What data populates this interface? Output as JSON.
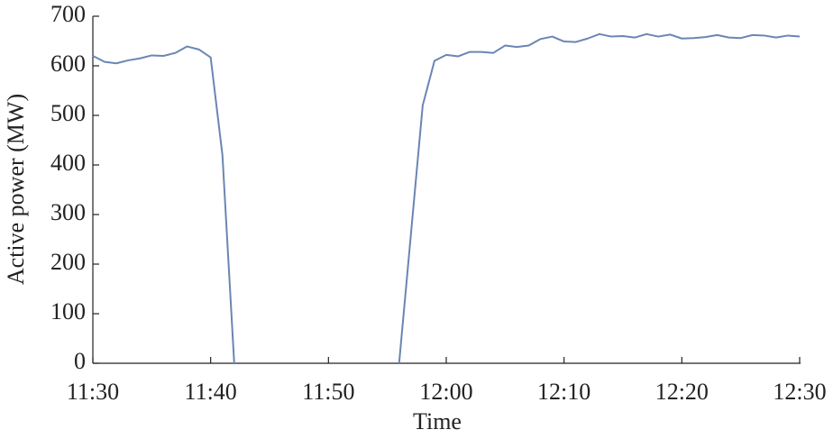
{
  "chart_data": {
    "type": "line",
    "xlabel": "Time",
    "ylabel": "Active power (MW)",
    "x": [
      "11:30",
      "11:31",
      "11:32",
      "11:33",
      "11:34",
      "11:35",
      "11:36",
      "11:37",
      "11:38",
      "11:39",
      "11:40",
      "11:41",
      "11:42",
      "11:43",
      "11:44",
      "11:45",
      "11:46",
      "11:47",
      "11:48",
      "11:49",
      "11:50",
      "11:51",
      "11:52",
      "11:53",
      "11:54",
      "11:55",
      "11:56",
      "11:57",
      "11:58",
      "11:59",
      "12:00",
      "12:01",
      "12:02",
      "12:03",
      "12:04",
      "12:05",
      "12:06",
      "12:07",
      "12:08",
      "12:09",
      "12:10",
      "12:11",
      "12:12",
      "12:13",
      "12:14",
      "12:15",
      "12:16",
      "12:17",
      "12:18",
      "12:19",
      "12:20",
      "12:21",
      "12:22",
      "12:23",
      "12:24",
      "12:25",
      "12:26",
      "12:27",
      "12:28",
      "12:29",
      "12:30"
    ],
    "values": [
      620,
      608,
      605,
      611,
      615,
      621,
      620,
      626,
      639,
      633,
      617,
      420,
      0,
      null,
      null,
      null,
      null,
      null,
      null,
      null,
      null,
      null,
      null,
      null,
      null,
      null,
      0,
      260,
      520,
      610,
      622,
      619,
      628,
      628,
      626,
      641,
      638,
      641,
      654,
      659,
      649,
      648,
      655,
      664,
      659,
      660,
      657,
      664,
      659,
      663,
      655,
      656,
      658,
      662,
      657,
      656,
      662,
      661,
      657,
      661,
      659
    ],
    "color": "#6a86b3",
    "xlim": [
      "11:30",
      "12:30"
    ],
    "xticks": [
      "11:30",
      "11:40",
      "11:50",
      "12:00",
      "12:10",
      "12:20",
      "12:30"
    ],
    "ylim": [
      0,
      700
    ],
    "yticks": [
      0,
      100,
      200,
      300,
      400,
      500,
      600,
      700
    ],
    "grid": false
  }
}
